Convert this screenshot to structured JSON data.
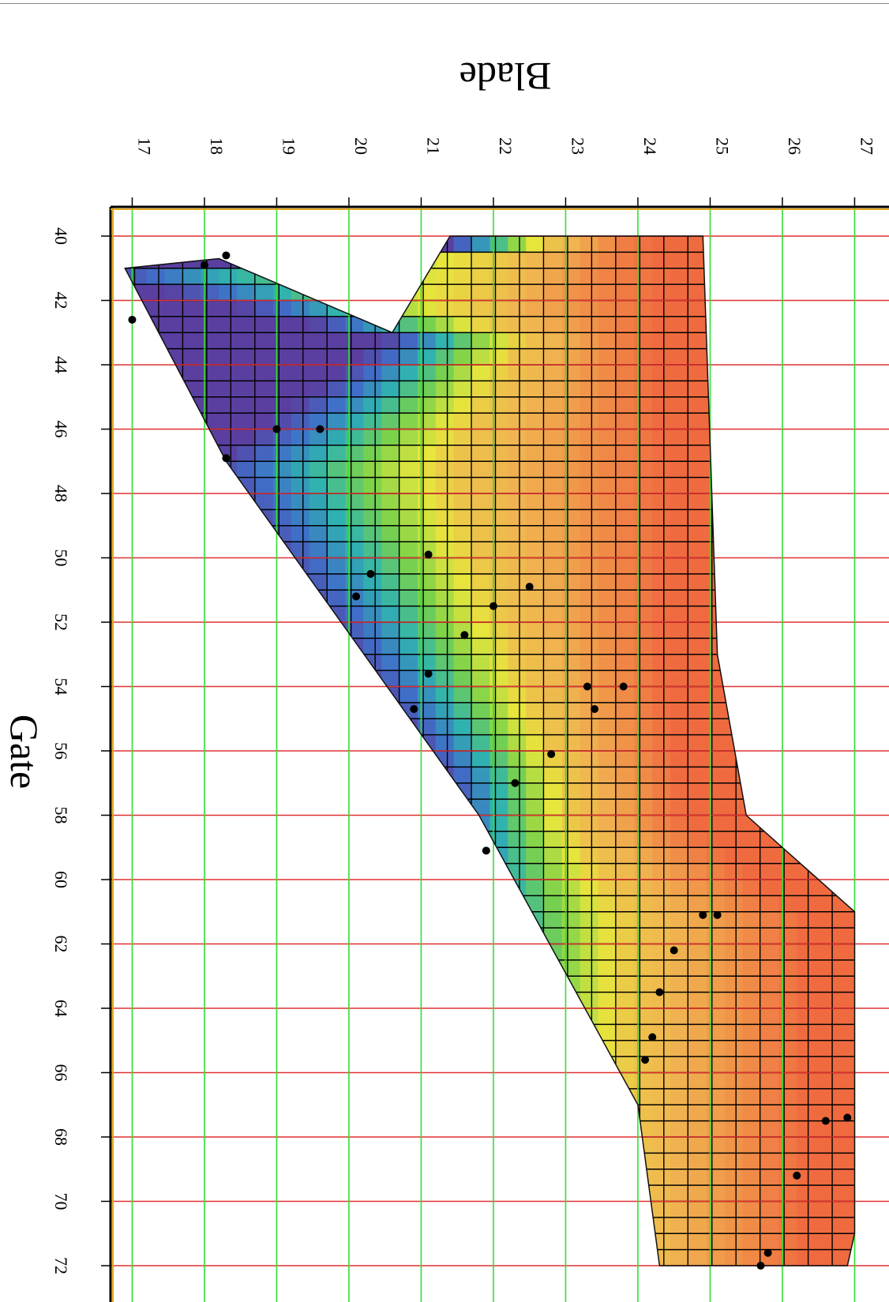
{
  "chart_data": {
    "type": "heatmap",
    "title": "",
    "xlabel": "Gate",
    "ylabel": "Blade",
    "xlim": [
      39,
      72.8
    ],
    "ylim": [
      16.3,
      27.3
    ],
    "x_ticks": [
      40,
      42,
      44,
      46,
      48,
      50,
      52,
      54,
      56,
      58,
      60,
      62,
      64,
      66,
      68,
      70,
      72
    ],
    "y_ticks": [
      17,
      18,
      19,
      20,
      21,
      22,
      23,
      24,
      25,
      26,
      27
    ],
    "orientation": "rotated 90deg clockwise (Gate increases downward, Blade increases rightward)",
    "gridlines": {
      "gate_color": "#e03030",
      "blade_color": "#33dd33"
    },
    "colormap": [
      "#5a3fa0",
      "#3f6fc8",
      "#2fb3b0",
      "#7ad24a",
      "#e6e63c",
      "#f0b450",
      "#f06a40"
    ],
    "operating_region": {
      "gate_range": [
        40,
        72
      ],
      "upper_blade_boundary": [
        [
          40,
          24.9
        ],
        [
          53,
          25.1
        ],
        [
          58,
          25.5
        ],
        [
          61,
          27.0
        ],
        [
          71,
          27.0
        ],
        [
          72,
          26.9
        ]
      ],
      "lower_blade_boundary": [
        [
          40,
          21.4
        ],
        [
          43,
          20.6
        ],
        [
          40.7,
          18.2
        ],
        [
          41.0,
          16.9
        ],
        [
          47,
          18.3
        ],
        [
          58,
          21.8
        ],
        [
          67,
          24.0
        ],
        [
          72,
          24.3
        ]
      ]
    },
    "measured_points": [
      {
        "gate": 40.6,
        "blade": 18.3
      },
      {
        "gate": 40.9,
        "blade": 18.0
      },
      {
        "gate": 42.6,
        "blade": 17.0
      },
      {
        "gate": 46.0,
        "blade": 19.0
      },
      {
        "gate": 46.0,
        "blade": 19.6
      },
      {
        "gate": 46.9,
        "blade": 18.3
      },
      {
        "gate": 49.9,
        "blade": 21.1
      },
      {
        "gate": 50.5,
        "blade": 20.3
      },
      {
        "gate": 50.9,
        "blade": 22.5
      },
      {
        "gate": 51.2,
        "blade": 20.1
      },
      {
        "gate": 51.5,
        "blade": 22.0
      },
      {
        "gate": 52.4,
        "blade": 21.6
      },
      {
        "gate": 53.6,
        "blade": 21.1
      },
      {
        "gate": 54.0,
        "blade": 23.8
      },
      {
        "gate": 54.0,
        "blade": 23.3
      },
      {
        "gate": 54.7,
        "blade": 23.4
      },
      {
        "gate": 54.7,
        "blade": 20.9
      },
      {
        "gate": 56.1,
        "blade": 22.8
      },
      {
        "gate": 57.0,
        "blade": 22.3
      },
      {
        "gate": 59.1,
        "blade": 21.9
      },
      {
        "gate": 61.1,
        "blade": 24.9
      },
      {
        "gate": 61.1,
        "blade": 25.1
      },
      {
        "gate": 62.2,
        "blade": 24.5
      },
      {
        "gate": 63.5,
        "blade": 24.3
      },
      {
        "gate": 64.9,
        "blade": 24.2
      },
      {
        "gate": 65.6,
        "blade": 24.1
      },
      {
        "gate": 67.4,
        "blade": 26.9
      },
      {
        "gate": 67.5,
        "blade": 26.6
      },
      {
        "gate": 69.2,
        "blade": 26.2
      },
      {
        "gate": 71.6,
        "blade": 25.8
      },
      {
        "gate": 72.0,
        "blade": 25.7
      }
    ]
  }
}
